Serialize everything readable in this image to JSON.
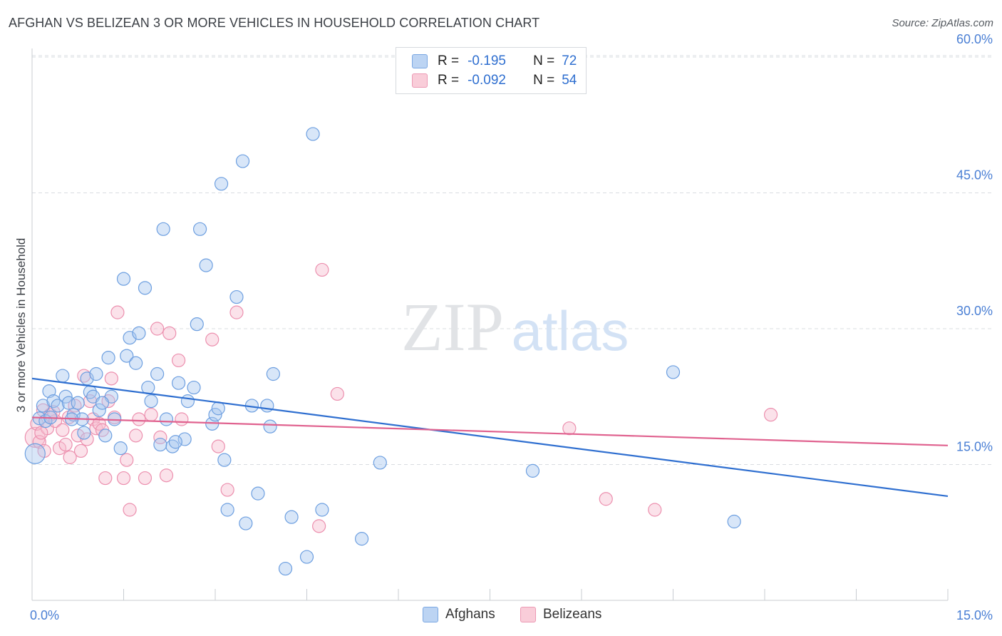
{
  "header": {
    "title": "AFGHAN VS BELIZEAN 3 OR MORE VEHICLES IN HOUSEHOLD CORRELATION CHART",
    "source": "Source: ZipAtlas.com"
  },
  "legend": {
    "rows": [
      {
        "r_label": "R =",
        "r_value": "-0.195",
        "n_label": "N =",
        "n_value": "72"
      },
      {
        "r_label": "R =",
        "r_value": "-0.092",
        "n_label": "N =",
        "n_value": "54"
      }
    ]
  },
  "watermark": {
    "zip": "ZIP",
    "atlas": "atlas"
  },
  "colors": {
    "afghans_fill": "#a9c8ef",
    "afghans_stroke": "#6d9fe0",
    "afghans_line": "#2f6fd0",
    "belizeans_fill": "#f6bfd0",
    "belizeans_stroke": "#ec8fae",
    "belizeans_line": "#e0628f",
    "tick_label": "#4a7fd4",
    "grid": "#d9dce1"
  },
  "chart_data": {
    "type": "scatter",
    "title": "AFGHAN VS BELIZEAN 3 OR MORE VEHICLES IN HOUSEHOLD CORRELATION CHART",
    "xlabel": "",
    "ylabel": "3 or more Vehicles in Household",
    "xlim": [
      0,
      15
    ],
    "ylim": [
      0,
      60
    ],
    "x_tick_labels": [
      "0.0%",
      "15.0%"
    ],
    "y_tick_labels": [
      "15.0%",
      "30.0%",
      "45.0%",
      "60.0%"
    ],
    "y_ticks": [
      15,
      30,
      45,
      60
    ],
    "grid": true,
    "legend_position": "bottom",
    "series": [
      {
        "name": "Afghans",
        "points": [
          [
            0.05,
            16.2
          ],
          [
            0.12,
            20.1
          ],
          [
            0.18,
            21.5
          ],
          [
            0.22,
            19.8
          ],
          [
            0.28,
            23.1
          ],
          [
            0.35,
            22.0
          ],
          [
            0.42,
            21.5
          ],
          [
            0.5,
            24.8
          ],
          [
            0.55,
            22.5
          ],
          [
            0.6,
            21.8
          ],
          [
            0.68,
            20.5
          ],
          [
            0.75,
            21.8
          ],
          [
            0.82,
            20.0
          ],
          [
            0.9,
            24.5
          ],
          [
            0.95,
            23.0
          ],
          [
            1.0,
            22.5
          ],
          [
            1.05,
            25.0
          ],
          [
            1.1,
            21.0
          ],
          [
            1.2,
            18.2
          ],
          [
            1.25,
            26.8
          ],
          [
            1.3,
            22.5
          ],
          [
            1.35,
            20.0
          ],
          [
            1.5,
            35.5
          ],
          [
            1.55,
            27.0
          ],
          [
            1.6,
            29.0
          ],
          [
            1.7,
            26.2
          ],
          [
            1.75,
            29.5
          ],
          [
            1.85,
            34.5
          ],
          [
            1.9,
            23.5
          ],
          [
            1.95,
            22.0
          ],
          [
            2.05,
            25.0
          ],
          [
            2.1,
            17.2
          ],
          [
            2.15,
            41.0
          ],
          [
            2.2,
            20.0
          ],
          [
            2.3,
            17.0
          ],
          [
            2.4,
            24.0
          ],
          [
            2.5,
            17.8
          ],
          [
            2.55,
            22.0
          ],
          [
            2.65,
            23.5
          ],
          [
            2.7,
            30.5
          ],
          [
            2.75,
            41.0
          ],
          [
            2.85,
            37.0
          ],
          [
            2.95,
            19.5
          ],
          [
            3.0,
            20.5
          ],
          [
            3.1,
            46.0
          ],
          [
            3.15,
            15.5
          ],
          [
            3.2,
            10.0
          ],
          [
            3.35,
            33.5
          ],
          [
            3.45,
            48.5
          ],
          [
            3.5,
            8.5
          ],
          [
            3.6,
            21.5
          ],
          [
            3.7,
            11.8
          ],
          [
            3.85,
            21.5
          ],
          [
            3.9,
            19.2
          ],
          [
            3.95,
            25.0
          ],
          [
            4.15,
            3.5
          ],
          [
            4.25,
            9.2
          ],
          [
            4.5,
            4.8
          ],
          [
            4.6,
            51.5
          ],
          [
            4.75,
            10.0
          ],
          [
            5.4,
            6.8
          ],
          [
            5.7,
            15.2
          ],
          [
            8.2,
            14.3
          ],
          [
            10.5,
            25.2
          ],
          [
            11.5,
            8.7
          ],
          [
            1.45,
            16.8
          ],
          [
            0.65,
            20.0
          ],
          [
            2.35,
            17.5
          ],
          [
            0.85,
            18.5
          ],
          [
            1.15,
            21.8
          ],
          [
            3.05,
            21.2
          ],
          [
            0.3,
            20.2
          ]
        ],
        "trendline": {
          "x": [
            0,
            15
          ],
          "y": [
            24.5,
            11.5
          ]
        }
      },
      {
        "name": "Belizeans",
        "points": [
          [
            0.05,
            18.0
          ],
          [
            0.08,
            19.5
          ],
          [
            0.12,
            17.5
          ],
          [
            0.18,
            21.0
          ],
          [
            0.25,
            19.0
          ],
          [
            0.3,
            20.5
          ],
          [
            0.38,
            19.8
          ],
          [
            0.45,
            16.8
          ],
          [
            0.5,
            18.8
          ],
          [
            0.55,
            17.2
          ],
          [
            0.62,
            15.8
          ],
          [
            0.7,
            21.5
          ],
          [
            0.75,
            18.2
          ],
          [
            0.8,
            16.5
          ],
          [
            0.85,
            24.8
          ],
          [
            0.9,
            17.8
          ],
          [
            0.95,
            22.0
          ],
          [
            1.0,
            20.0
          ],
          [
            1.05,
            19.0
          ],
          [
            1.1,
            19.5
          ],
          [
            1.2,
            13.5
          ],
          [
            1.25,
            22.0
          ],
          [
            1.3,
            24.5
          ],
          [
            1.4,
            31.8
          ],
          [
            1.5,
            13.5
          ],
          [
            1.55,
            15.5
          ],
          [
            1.6,
            10.0
          ],
          [
            1.7,
            18.2
          ],
          [
            1.75,
            20.0
          ],
          [
            1.85,
            13.5
          ],
          [
            1.95,
            20.5
          ],
          [
            2.05,
            30.0
          ],
          [
            2.2,
            13.8
          ],
          [
            2.25,
            29.5
          ],
          [
            2.4,
            26.5
          ],
          [
            2.45,
            20.0
          ],
          [
            2.95,
            28.8
          ],
          [
            3.05,
            17.0
          ],
          [
            3.2,
            12.2
          ],
          [
            3.35,
            31.8
          ],
          [
            4.7,
            8.2
          ],
          [
            4.75,
            36.5
          ],
          [
            5.0,
            22.8
          ],
          [
            8.8,
            19.0
          ],
          [
            9.4,
            11.2
          ],
          [
            10.2,
            10.0
          ],
          [
            12.1,
            20.5
          ],
          [
            0.15,
            18.5
          ],
          [
            0.35,
            20.8
          ],
          [
            0.6,
            20.2
          ],
          [
            1.15,
            18.8
          ],
          [
            1.35,
            20.2
          ],
          [
            2.1,
            18.0
          ],
          [
            0.2,
            16.5
          ]
        ],
        "trendline": {
          "x": [
            0,
            15
          ],
          "y": [
            20.2,
            17.1
          ]
        }
      }
    ]
  },
  "bottom_legend": {
    "afghans": "Afghans",
    "belizeans": "Belizeans"
  }
}
